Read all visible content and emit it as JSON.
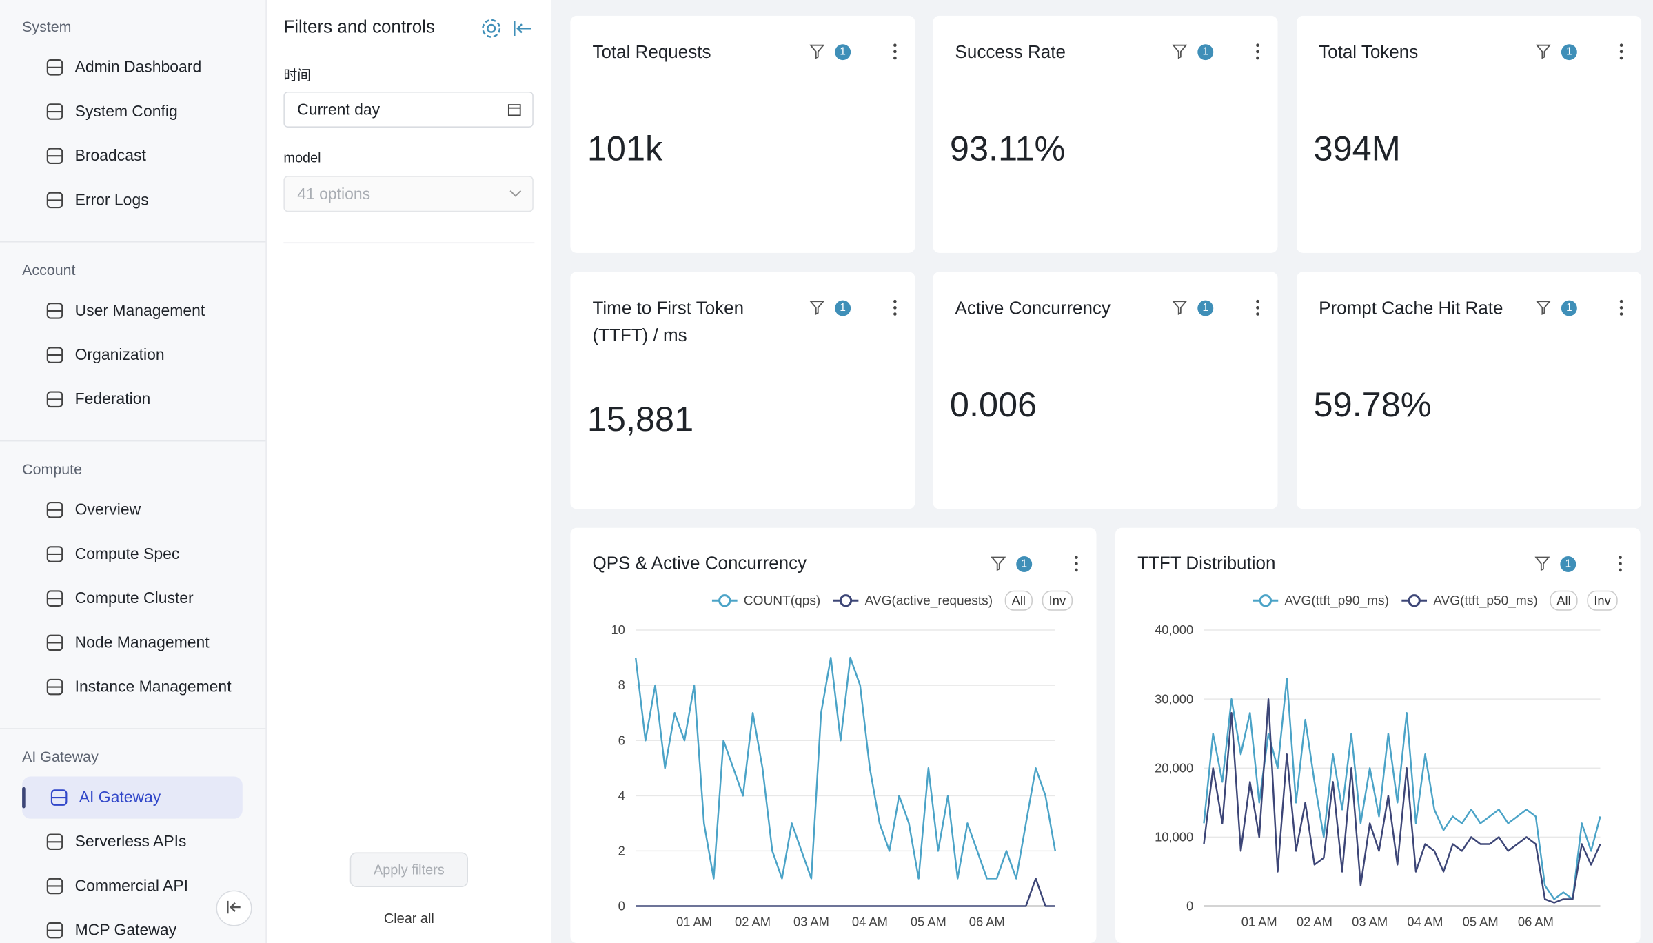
{
  "sidebar": {
    "sections": [
      {
        "title": "System",
        "items": [
          {
            "label": "Admin Dashboard"
          },
          {
            "label": "System Config"
          },
          {
            "label": "Broadcast"
          },
          {
            "label": "Error Logs"
          }
        ]
      },
      {
        "title": "Account",
        "items": [
          {
            "label": "User Management"
          },
          {
            "label": "Organization"
          },
          {
            "label": "Federation"
          }
        ]
      },
      {
        "title": "Compute",
        "items": [
          {
            "label": "Overview"
          },
          {
            "label": "Compute Spec"
          },
          {
            "label": "Compute Cluster"
          },
          {
            "label": "Node Management"
          },
          {
            "label": "Instance Management"
          }
        ]
      },
      {
        "title": "AI Gateway",
        "items": [
          {
            "label": "AI Gateway",
            "selected": true
          },
          {
            "label": "Serverless APIs"
          },
          {
            "label": "Commercial API"
          },
          {
            "label": "MCP Gateway"
          }
        ]
      }
    ]
  },
  "filters": {
    "title": "Filters and controls",
    "time_label": "时间",
    "time_value": "Current day",
    "model_label": "model",
    "model_placeholder": "41 options",
    "apply": "Apply filters",
    "clear": "Clear all"
  },
  "kpis": [
    {
      "title": "Total Requests",
      "badge": "1",
      "value": "101k"
    },
    {
      "title": "Success Rate",
      "badge": "1",
      "value": "93.11%"
    },
    {
      "title": "Total Tokens",
      "badge": "1",
      "value": "394M"
    },
    {
      "title": "Time to First Token (TTFT) / ms",
      "badge": "1",
      "value": "15,881"
    },
    {
      "title": "Active Concurrency",
      "badge": "1",
      "value": "0.006"
    },
    {
      "title": "Prompt Cache Hit Rate",
      "badge": "1",
      "value": "59.78%"
    }
  ],
  "chart_data": [
    {
      "type": "line",
      "title": "QPS & Active Concurrency",
      "badge": "1",
      "legend_buttons": [
        "All",
        "Inv"
      ],
      "categories": [
        null,
        null,
        null,
        null,
        null,
        null,
        "01 AM",
        null,
        null,
        null,
        null,
        null,
        "02 AM",
        null,
        null,
        null,
        null,
        null,
        "03 AM",
        null,
        null,
        null,
        null,
        null,
        "04 AM",
        null,
        null,
        null,
        null,
        null,
        "05 AM",
        null,
        null,
        null,
        null,
        null,
        "06 AM",
        null,
        null,
        null,
        null,
        null,
        null,
        null
      ],
      "series": [
        {
          "name": "COUNT(qps)",
          "color": "#4ba3c7",
          "values": [
            9,
            6,
            8,
            5,
            7,
            6,
            8,
            3,
            1,
            6,
            5,
            4,
            7,
            5,
            2,
            1,
            3,
            2,
            1,
            7,
            9,
            6,
            9,
            8,
            5,
            3,
            2,
            4,
            3,
            1,
            5,
            2,
            4,
            1,
            3,
            2,
            1,
            1,
            2,
            1,
            3,
            5,
            4,
            2
          ]
        },
        {
          "name": "AVG(active_requests)",
          "color": "#3d4677",
          "values": [
            0,
            0,
            0,
            0,
            0,
            0,
            0,
            0,
            0,
            0,
            0,
            0,
            0,
            0,
            0,
            0,
            0,
            0,
            0,
            0,
            0,
            0,
            0,
            0,
            0,
            0,
            0,
            0,
            0,
            0,
            0,
            0,
            0,
            0,
            0,
            0,
            0,
            0,
            0,
            0,
            0,
            1,
            0,
            0
          ]
        }
      ],
      "ylim": [
        0,
        10
      ],
      "yticks": [
        0,
        2,
        4,
        6,
        8,
        10
      ],
      "grid": true
    },
    {
      "type": "line",
      "title": "TTFT Distribution",
      "badge": "1",
      "legend_buttons": [
        "All",
        "Inv"
      ],
      "categories": [
        null,
        null,
        null,
        null,
        null,
        null,
        "01 AM",
        null,
        null,
        null,
        null,
        null,
        "02 AM",
        null,
        null,
        null,
        null,
        null,
        "03 AM",
        null,
        null,
        null,
        null,
        null,
        "04 AM",
        null,
        null,
        null,
        null,
        null,
        "05 AM",
        null,
        null,
        null,
        null,
        null,
        "06 AM",
        null,
        null,
        null,
        null,
        null,
        null,
        null
      ],
      "series": [
        {
          "name": "AVG(ttft_p90_ms)",
          "color": "#4ba3c7",
          "values": [
            12000,
            25000,
            18000,
            30000,
            22000,
            28000,
            15000,
            25000,
            20000,
            33000,
            15000,
            27000,
            18000,
            10000,
            22000,
            14000,
            25000,
            12000,
            20000,
            13000,
            25000,
            15000,
            28000,
            12000,
            22000,
            14000,
            11000,
            13000,
            12000,
            14000,
            12000,
            13000,
            14000,
            12000,
            13000,
            14000,
            13000,
            3000,
            1000,
            2000,
            1000,
            12000,
            8000,
            13000
          ]
        },
        {
          "name": "AVG(ttft_p50_ms)",
          "color": "#3d4677",
          "values": [
            9000,
            20000,
            12000,
            28000,
            8000,
            18000,
            10000,
            30000,
            5000,
            22000,
            8000,
            15000,
            6000,
            7000,
            18000,
            5000,
            20000,
            3000,
            12000,
            8000,
            16000,
            6000,
            20000,
            5000,
            9000,
            8000,
            5000,
            9000,
            8000,
            10000,
            9000,
            9000,
            10000,
            8000,
            9000,
            10000,
            9000,
            1000,
            500,
            1000,
            1000,
            9000,
            6000,
            9000
          ]
        }
      ],
      "ylim": [
        0,
        40000
      ],
      "yticks": [
        0,
        {
          "value": 10000,
          "label": "10,000"
        },
        {
          "value": 20000,
          "label": "20,000"
        },
        {
          "value": 30000,
          "label": "30,000"
        },
        {
          "value": 40000,
          "label": "40,000"
        }
      ],
      "grid": true
    }
  ]
}
